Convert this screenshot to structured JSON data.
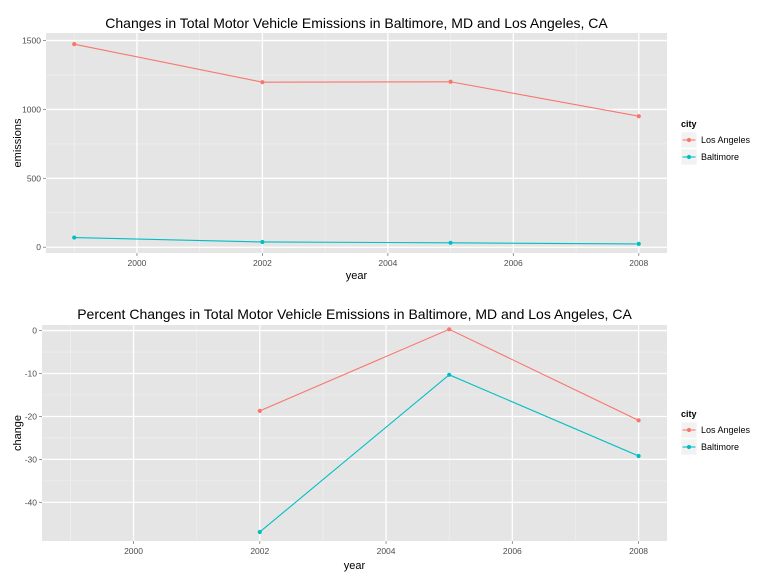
{
  "chart_data": [
    {
      "type": "line",
      "title": "Changes in Total Motor Vehicle Emissions in Baltimore, MD and Los Angeles, CA",
      "xlabel": "year",
      "ylabel": "emissions",
      "x": [
        1999,
        2002,
        2005,
        2008
      ],
      "xticks": [
        2000,
        2002,
        2004,
        2006,
        2008
      ],
      "yticks": [
        0,
        500,
        1000,
        1500
      ],
      "xlim": [
        1998.55,
        2008.45
      ],
      "ylim": [
        -42,
        1555
      ],
      "grid": true,
      "legend": {
        "title": "city",
        "position": "right"
      },
      "series": [
        {
          "name": "Los Angeles",
          "color": "#F8766D",
          "values": [
            1474,
            1198,
            1201,
            951
          ]
        },
        {
          "name": "Baltimore",
          "color": "#00BFC4",
          "values": [
            70,
            38,
            32,
            24
          ]
        }
      ]
    },
    {
      "type": "line",
      "title": "Percent Changes in Total Motor Vehicle Emissions in Baltimore, MD and Los Angeles, CA",
      "xlabel": "year",
      "ylabel": "change",
      "x": [
        1999,
        2002,
        2005,
        2008
      ],
      "xticks": [
        2000,
        2002,
        2004,
        2006,
        2008
      ],
      "yticks": [
        0,
        -10,
        -20,
        -30,
        -40
      ],
      "xlim": [
        1998.55,
        2008.45
      ],
      "ylim": [
        -49,
        1.3
      ],
      "grid": true,
      "legend": {
        "title": "city",
        "position": "right"
      },
      "series": [
        {
          "name": "Los Angeles",
          "color": "#F8766D",
          "values": [
            null,
            -18.7,
            0.3,
            -20.9
          ]
        },
        {
          "name": "Baltimore",
          "color": "#00BFC4",
          "values": [
            null,
            -46.9,
            -10.3,
            -29.2
          ]
        }
      ]
    }
  ]
}
